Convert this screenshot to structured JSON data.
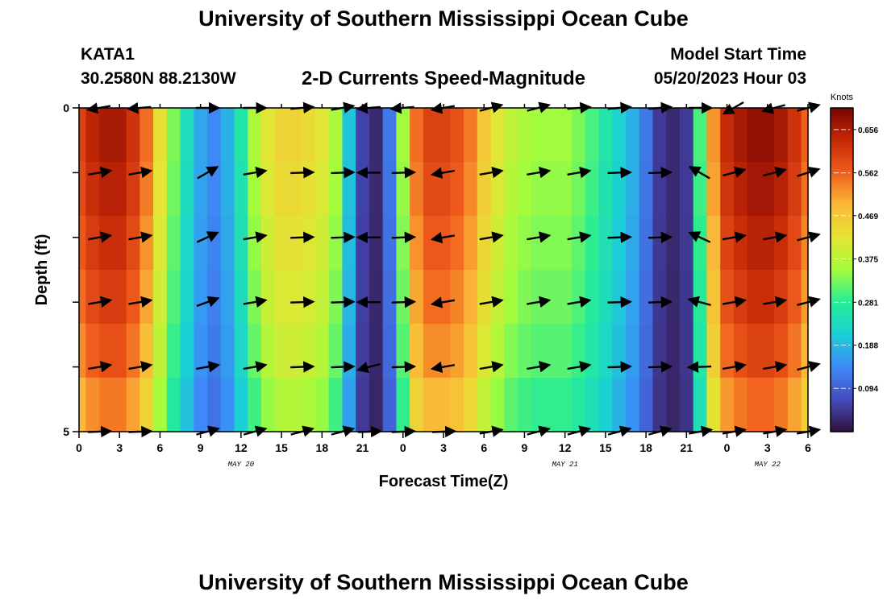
{
  "header": {
    "title": "University of Southern Mississippi Ocean Cube",
    "station": "KATA1",
    "coords": "30.2580N  88.2130W",
    "plot_title": "2-D Currents Speed-Magnitude",
    "start_label": "Model Start Time",
    "start_value": "05/20/2023 Hour 03",
    "footer_title": "University of Southern Mississippi Ocean Cube"
  },
  "chart_data": {
    "type": "heatmap",
    "title": "2-D Currents Speed-Magnitude",
    "xlabel": "Forecast Time(Z)",
    "ylabel": "Depth (ft)",
    "x_tick_labels": [
      "0",
      "3",
      "6",
      "9",
      "12",
      "15",
      "18",
      "21",
      "0",
      "3",
      "6",
      "9",
      "12",
      "15",
      "18",
      "21",
      "0",
      "3",
      "6"
    ],
    "x_range_hours": [
      0,
      54
    ],
    "y_tick_labels": [
      "0",
      "5"
    ],
    "y_range_ft": [
      0,
      5
    ],
    "day_labels": [
      {
        "text": "MAY 20",
        "hour": 12
      },
      {
        "text": "MAY 21",
        "hour": 36
      },
      {
        "text": "MAY 22",
        "hour": 51
      }
    ],
    "colorbar": {
      "unit": "Knots",
      "range": [
        0.0,
        0.703
      ],
      "tick_values": [
        0.656,
        0.562,
        0.469,
        0.375,
        0.281,
        0.188,
        0.094
      ],
      "tick_labels": [
        "0.656",
        "0.562",
        "0.469",
        "0.375",
        "0.281",
        "0.188",
        "0.094"
      ]
    },
    "time_hours": [
      0,
      1,
      2,
      3,
      4,
      5,
      6,
      7,
      8,
      9,
      10,
      11,
      12,
      13,
      14,
      15,
      16,
      17,
      18,
      19,
      20,
      21,
      22,
      23,
      24,
      25,
      26,
      27,
      28,
      29,
      30,
      31,
      32,
      33,
      34,
      35,
      36,
      37,
      38,
      39,
      40,
      41,
      42,
      43,
      44,
      45,
      46,
      47,
      48,
      49,
      50,
      51,
      52,
      53,
      54
    ],
    "speed_by_hour_knots": [
      0.6,
      0.64,
      0.66,
      0.66,
      0.62,
      0.55,
      0.43,
      0.33,
      0.24,
      0.17,
      0.14,
      0.18,
      0.26,
      0.36,
      0.42,
      0.45,
      0.45,
      0.44,
      0.42,
      0.36,
      0.2,
      0.06,
      0.03,
      0.12,
      0.35,
      0.55,
      0.6,
      0.6,
      0.58,
      0.54,
      0.47,
      0.42,
      0.38,
      0.36,
      0.35,
      0.35,
      0.35,
      0.33,
      0.3,
      0.26,
      0.22,
      0.18,
      0.12,
      0.05,
      0.03,
      0.05,
      0.3,
      0.52,
      0.63,
      0.66,
      0.68,
      0.68,
      0.66,
      0.62,
      0.56
    ],
    "depth_factors": [
      1.0,
      0.98,
      0.95,
      0.92,
      0.88,
      0.82
    ],
    "vector_time_hours": [
      1.5,
      4.5,
      9.5,
      13,
      16.5,
      19.5,
      21.5,
      24,
      27,
      30.5,
      34,
      37,
      40,
      43,
      46,
      48.5,
      51.5,
      54
    ],
    "vector_depth_ft": [
      0,
      1,
      2,
      3,
      4,
      5
    ],
    "vector_directions_deg": [
      [
        190,
        185,
        0,
        0,
        5,
        10,
        185,
        185,
        190,
        15,
        15,
        5,
        5,
        5,
        0,
        210,
        195,
        15
      ],
      [
        10,
        10,
        30,
        10,
        2,
        2,
        180,
        2,
        190,
        10,
        10,
        10,
        2,
        2,
        150,
        15,
        15,
        18
      ],
      [
        10,
        10,
        25,
        10,
        2,
        2,
        180,
        2,
        190,
        10,
        10,
        10,
        2,
        2,
        155,
        10,
        10,
        15
      ],
      [
        10,
        10,
        20,
        10,
        2,
        2,
        180,
        2,
        190,
        10,
        10,
        10,
        2,
        2,
        165,
        10,
        10,
        15
      ],
      [
        10,
        10,
        10,
        10,
        2,
        2,
        195,
        2,
        190,
        10,
        10,
        10,
        2,
        2,
        182,
        10,
        10,
        15
      ],
      [
        2,
        2,
        15,
        15,
        15,
        15,
        2,
        2,
        2,
        10,
        15,
        15,
        15,
        15,
        10,
        10,
        10,
        10
      ]
    ]
  }
}
